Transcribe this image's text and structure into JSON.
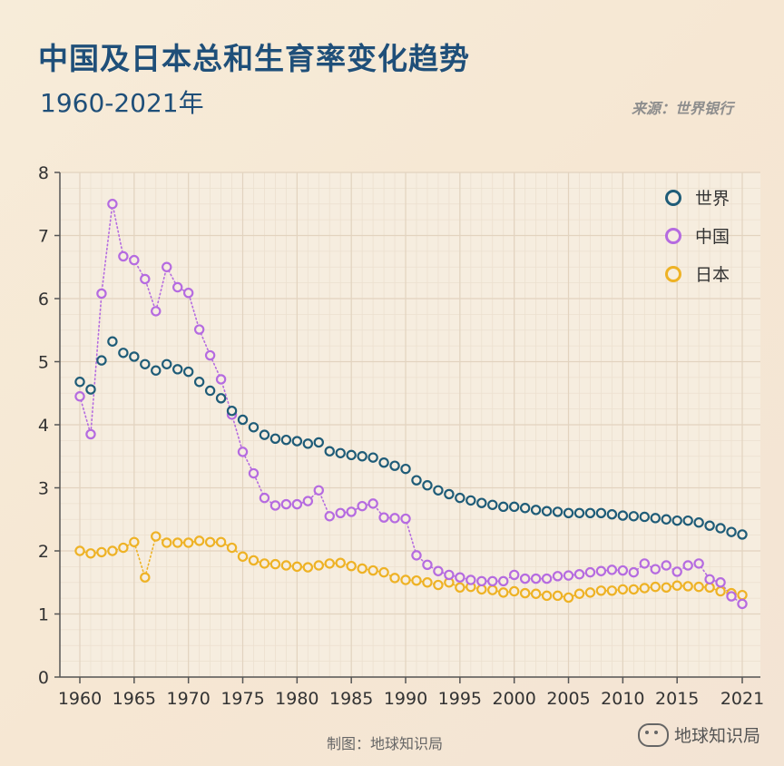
{
  "title": "中国及日本总和生育率变化趋势",
  "subtitle": "1960-2021年",
  "source": "来源：世界银行",
  "credit": "制图：地球知识局",
  "watermark_brand": "地球知识局",
  "chart_data": {
    "type": "scatter",
    "title": "中国及日本总和生育率变化趋势",
    "subtitle": "1960-2021年",
    "xlabel": "",
    "ylabel": "",
    "xlim": [
      1960,
      2021
    ],
    "ylim": [
      0,
      8
    ],
    "grid": true,
    "legend_position": "top-right",
    "x_ticks": [
      1960,
      1965,
      1970,
      1975,
      1980,
      1985,
      1990,
      1995,
      2000,
      2005,
      2010,
      2015,
      2021
    ],
    "y_ticks": [
      0,
      1,
      2,
      3,
      4,
      5,
      6,
      7,
      8
    ],
    "x": [
      1960,
      1961,
      1962,
      1963,
      1964,
      1965,
      1966,
      1967,
      1968,
      1969,
      1970,
      1971,
      1972,
      1973,
      1974,
      1975,
      1976,
      1977,
      1978,
      1979,
      1980,
      1981,
      1982,
      1983,
      1984,
      1985,
      1986,
      1987,
      1988,
      1989,
      1990,
      1991,
      1992,
      1993,
      1994,
      1995,
      1996,
      1997,
      1998,
      1999,
      2000,
      2001,
      2002,
      2003,
      2004,
      2005,
      2006,
      2007,
      2008,
      2009,
      2010,
      2011,
      2012,
      2013,
      2014,
      2015,
      2016,
      2017,
      2018,
      2019,
      2020,
      2021
    ],
    "series": [
      {
        "name": "世界",
        "color": "#1f5c78",
        "line": "none",
        "values": [
          4.68,
          4.56,
          5.02,
          5.32,
          5.14,
          5.08,
          4.96,
          4.86,
          4.96,
          4.88,
          4.84,
          4.68,
          4.54,
          4.42,
          4.22,
          4.08,
          3.96,
          3.84,
          3.78,
          3.76,
          3.74,
          3.7,
          3.72,
          3.58,
          3.55,
          3.52,
          3.5,
          3.48,
          3.4,
          3.35,
          3.3,
          3.12,
          3.04,
          2.96,
          2.9,
          2.84,
          2.8,
          2.76,
          2.73,
          2.7,
          2.7,
          2.68,
          2.65,
          2.63,
          2.62,
          2.6,
          2.6,
          2.6,
          2.6,
          2.58,
          2.56,
          2.55,
          2.54,
          2.52,
          2.5,
          2.48,
          2.48,
          2.45,
          2.4,
          2.36,
          2.3,
          2.26
        ]
      },
      {
        "name": "中国",
        "color": "#b56be0",
        "line": "dotted",
        "values": [
          4.45,
          3.85,
          6.08,
          7.5,
          6.67,
          6.61,
          6.31,
          5.8,
          6.5,
          6.18,
          6.09,
          5.51,
          5.1,
          4.72,
          4.16,
          3.57,
          3.23,
          2.84,
          2.72,
          2.74,
          2.74,
          2.79,
          2.96,
          2.55,
          2.6,
          2.62,
          2.71,
          2.75,
          2.53,
          2.52,
          2.51,
          1.93,
          1.78,
          1.68,
          1.62,
          1.58,
          1.54,
          1.52,
          1.52,
          1.52,
          1.62,
          1.56,
          1.56,
          1.56,
          1.6,
          1.61,
          1.63,
          1.66,
          1.68,
          1.7,
          1.69,
          1.66,
          1.8,
          1.71,
          1.77,
          1.67,
          1.77,
          1.8,
          1.55,
          1.5,
          1.28,
          1.16
        ]
      },
      {
        "name": "日本",
        "color": "#eeb225",
        "line": "dotted",
        "values": [
          2.0,
          1.96,
          1.98,
          2.0,
          2.05,
          2.14,
          1.58,
          2.23,
          2.13,
          2.13,
          2.13,
          2.16,
          2.14,
          2.14,
          2.05,
          1.91,
          1.85,
          1.8,
          1.79,
          1.77,
          1.75,
          1.74,
          1.77,
          1.8,
          1.81,
          1.76,
          1.72,
          1.69,
          1.66,
          1.57,
          1.54,
          1.53,
          1.5,
          1.46,
          1.5,
          1.42,
          1.43,
          1.39,
          1.38,
          1.34,
          1.36,
          1.33,
          1.32,
          1.29,
          1.29,
          1.26,
          1.32,
          1.34,
          1.37,
          1.37,
          1.39,
          1.39,
          1.41,
          1.43,
          1.42,
          1.45,
          1.44,
          1.43,
          1.42,
          1.36,
          1.33,
          1.3
        ]
      }
    ]
  }
}
